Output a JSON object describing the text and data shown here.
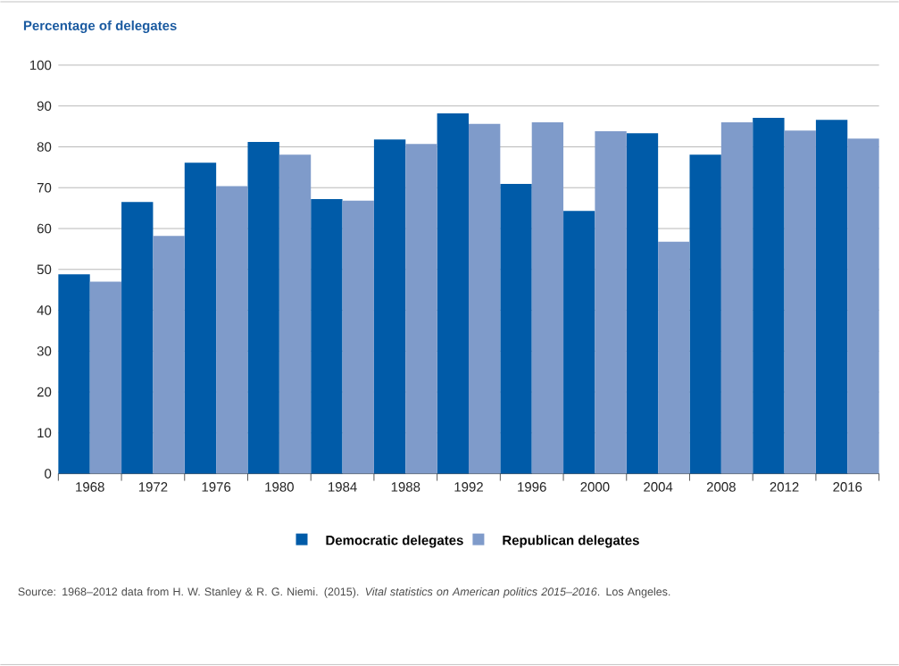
{
  "chart_data": {
    "type": "bar",
    "ylabel": "Percentage of delegates",
    "categories": [
      "1968",
      "1972",
      "1976",
      "1980",
      "1984",
      "1988",
      "1992",
      "1996",
      "2000",
      "2004",
      "2008",
      "2012",
      "2016"
    ],
    "series": [
      {
        "name": "Democratic delegates",
        "color": "#005ba8",
        "values": [
          48.8,
          66.5,
          76.1,
          81.2,
          67.2,
          81.8,
          88.2,
          70.9,
          64.3,
          83.3,
          78.1,
          87.1,
          86.6
        ]
      },
      {
        "name": "Republican delegates",
        "color": "#7f9bca",
        "values": [
          47.0,
          58.2,
          70.4,
          78.1,
          66.8,
          80.7,
          85.6,
          86.0,
          83.8,
          56.8,
          86.0,
          84.0,
          82.0
        ]
      }
    ],
    "ylim": [
      0,
      100
    ],
    "yticks": [
      0,
      10,
      20,
      30,
      40,
      50,
      60,
      70,
      80,
      90,
      100
    ],
    "grid": "y",
    "legend": "bottom",
    "annotations": [
      "Source: 1968–2012 data from H. W. Stanley & R. G. Niemi. (2015). *Vital statistics on American politics 2015–2016*. Los Angeles."
    ]
  }
}
